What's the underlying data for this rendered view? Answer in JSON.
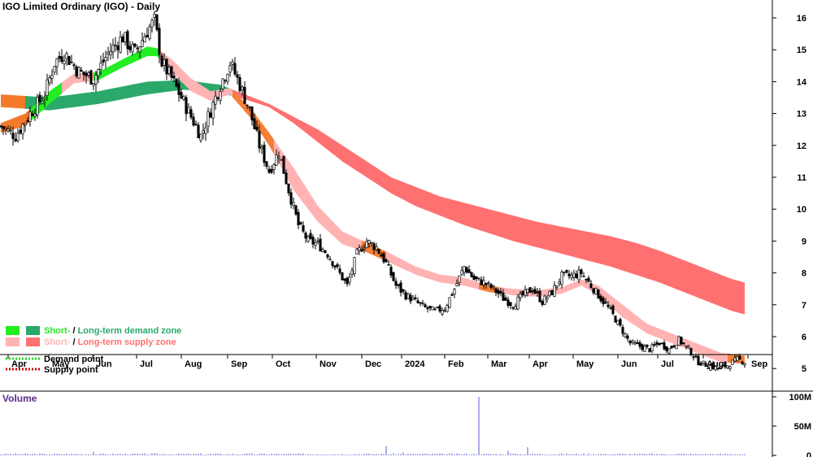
{
  "chart_data": {
    "type": "candlestick",
    "title": "IGO Limited Ordinary (IGO) - Daily",
    "ylim": [
      4.6,
      16.4
    ],
    "y_ticks": [
      "5",
      "6",
      "7",
      "8",
      "9",
      "10",
      "11",
      "12",
      "13",
      "14",
      "15",
      "16"
    ],
    "x_ticks": [
      "Apr",
      "May",
      "Jun",
      "Jul",
      "Aug",
      "Sep",
      "Oct",
      "Nov",
      "Dec",
      "2024",
      "Feb",
      "Mar",
      "Apr",
      "May",
      "Jun",
      "Jul",
      "Aug",
      "Sep"
    ],
    "grid": false,
    "legend_position": "bottom-left",
    "legend": [
      {
        "label_a": "Short-",
        "sep": " / ",
        "label_b": "Long-term demand zone",
        "color_a": "#22ee22",
        "color_b": "#2aa96a"
      },
      {
        "label_a": "Short-",
        "sep": " / ",
        "label_b": "Long-term supply zone",
        "color_a": "#ffb3b3",
        "color_b": "#ff7070"
      },
      {
        "label": "Demand point",
        "color": "#22dd22"
      },
      {
        "label": "Supply point",
        "color": "#cc0000"
      }
    ],
    "close_series": [
      [
        0,
        12.6
      ],
      [
        6,
        12.3
      ],
      [
        12,
        13.0
      ],
      [
        18,
        13.6
      ],
      [
        22,
        14.6
      ],
      [
        26,
        14.9
      ],
      [
        32,
        14.3
      ],
      [
        38,
        14.1
      ],
      [
        44,
        14.9
      ],
      [
        50,
        15.4
      ],
      [
        55,
        14.9
      ],
      [
        60,
        15.6
      ],
      [
        63,
        15.9
      ],
      [
        66,
        14.6
      ],
      [
        70,
        14.1
      ],
      [
        74,
        13.5
      ],
      [
        78,
        12.9
      ],
      [
        82,
        12.3
      ],
      [
        86,
        13.1
      ],
      [
        90,
        13.9
      ],
      [
        94,
        14.6
      ],
      [
        98,
        13.9
      ],
      [
        102,
        13.1
      ],
      [
        106,
        12.0
      ],
      [
        110,
        11.2
      ],
      [
        114,
        11.8
      ],
      [
        118,
        10.6
      ],
      [
        122,
        9.5
      ],
      [
        126,
        9.0
      ],
      [
        130,
        8.9
      ],
      [
        134,
        8.6
      ],
      [
        138,
        8.1
      ],
      [
        142,
        7.6
      ],
      [
        146,
        8.6
      ],
      [
        150,
        9.0
      ],
      [
        154,
        8.8
      ],
      [
        158,
        8.3
      ],
      [
        162,
        7.6
      ],
      [
        166,
        7.3
      ],
      [
        170,
        7.1
      ],
      [
        174,
        6.9
      ],
      [
        178,
        6.8
      ],
      [
        182,
        6.9
      ],
      [
        186,
        7.5
      ],
      [
        190,
        8.2
      ],
      [
        194,
        7.8
      ],
      [
        198,
        7.7
      ],
      [
        202,
        7.5
      ],
      [
        206,
        7.2
      ],
      [
        210,
        7.0
      ],
      [
        214,
        7.3
      ],
      [
        218,
        7.5
      ],
      [
        222,
        7.1
      ],
      [
        226,
        7.4
      ],
      [
        230,
        7.9
      ],
      [
        234,
        7.9
      ],
      [
        238,
        8.0
      ],
      [
        242,
        7.6
      ],
      [
        246,
        7.2
      ],
      [
        250,
        6.8
      ],
      [
        254,
        6.3
      ],
      [
        258,
        5.8
      ],
      [
        262,
        5.7
      ],
      [
        266,
        5.6
      ],
      [
        270,
        5.8
      ],
      [
        274,
        5.6
      ],
      [
        278,
        5.9
      ],
      [
        282,
        5.6
      ],
      [
        286,
        5.2
      ],
      [
        290,
        5.1
      ],
      [
        294,
        5.0
      ],
      [
        298,
        5.1
      ],
      [
        302,
        5.3
      ],
      [
        305,
        5.2
      ]
    ],
    "long_term_zone": {
      "upper": [
        [
          0,
          13.6
        ],
        [
          20,
          13.5
        ],
        [
          40,
          13.7
        ],
        [
          60,
          14.0
        ],
        [
          75,
          14.05
        ],
        [
          90,
          13.9
        ],
        [
          100,
          13.6
        ],
        [
          110,
          13.3
        ],
        [
          120,
          12.9
        ],
        [
          130,
          12.5
        ],
        [
          140,
          12.0
        ],
        [
          150,
          11.5
        ],
        [
          160,
          11.0
        ],
        [
          170,
          10.7
        ],
        [
          180,
          10.4
        ],
        [
          190,
          10.2
        ],
        [
          200,
          10.0
        ],
        [
          210,
          9.8
        ],
        [
          220,
          9.6
        ],
        [
          230,
          9.45
        ],
        [
          240,
          9.3
        ],
        [
          250,
          9.15
        ],
        [
          260,
          8.95
        ],
        [
          270,
          8.7
        ],
        [
          280,
          8.4
        ],
        [
          290,
          8.1
        ],
        [
          300,
          7.8
        ],
        [
          305,
          7.7
        ]
      ],
      "lower": [
        [
          0,
          13.2
        ],
        [
          20,
          13.1
        ],
        [
          40,
          13.3
        ],
        [
          60,
          13.6
        ],
        [
          75,
          13.75
        ],
        [
          90,
          13.65
        ],
        [
          100,
          13.45
        ],
        [
          110,
          13.2
        ],
        [
          120,
          12.7
        ],
        [
          130,
          12.1
        ],
        [
          140,
          11.5
        ],
        [
          150,
          11.0
        ],
        [
          160,
          10.5
        ],
        [
          170,
          10.1
        ],
        [
          180,
          9.8
        ],
        [
          190,
          9.5
        ],
        [
          200,
          9.25
        ],
        [
          210,
          9.0
        ],
        [
          220,
          8.8
        ],
        [
          230,
          8.6
        ],
        [
          240,
          8.4
        ],
        [
          250,
          8.2
        ],
        [
          260,
          7.95
        ],
        [
          270,
          7.7
        ],
        [
          280,
          7.4
        ],
        [
          290,
          7.1
        ],
        [
          300,
          6.8
        ],
        [
          305,
          6.7
        ]
      ],
      "segments": [
        {
          "from": 0,
          "to": 10,
          "state": "supply"
        },
        {
          "from": 10,
          "to": 95,
          "state": "demand"
        },
        {
          "from": 95,
          "to": 305,
          "state": "supply"
        }
      ]
    },
    "short_term_zone": {
      "upper": [
        [
          0,
          12.7
        ],
        [
          10,
          13.0
        ],
        [
          20,
          13.7
        ],
        [
          30,
          14.25
        ],
        [
          40,
          14.3
        ],
        [
          50,
          14.7
        ],
        [
          60,
          15.1
        ],
        [
          64,
          15.05
        ],
        [
          70,
          14.7
        ],
        [
          78,
          14.1
        ],
        [
          86,
          13.7
        ],
        [
          94,
          13.8
        ],
        [
          102,
          13.2
        ],
        [
          110,
          12.4
        ],
        [
          120,
          11.3
        ],
        [
          130,
          10.1
        ],
        [
          140,
          9.3
        ],
        [
          150,
          8.95
        ],
        [
          160,
          8.6
        ],
        [
          170,
          8.2
        ],
        [
          180,
          7.95
        ],
        [
          190,
          7.85
        ],
        [
          200,
          7.6
        ],
        [
          210,
          7.5
        ],
        [
          220,
          7.45
        ],
        [
          230,
          7.55
        ],
        [
          238,
          7.8
        ],
        [
          245,
          7.6
        ],
        [
          255,
          7.0
        ],
        [
          265,
          6.4
        ],
        [
          275,
          6.1
        ],
        [
          285,
          5.8
        ],
        [
          295,
          5.5
        ],
        [
          305,
          5.4
        ]
      ],
      "lower": [
        [
          0,
          12.4
        ],
        [
          10,
          12.6
        ],
        [
          20,
          13.3
        ],
        [
          30,
          13.95
        ],
        [
          40,
          14.05
        ],
        [
          50,
          14.45
        ],
        [
          60,
          14.8
        ],
        [
          64,
          14.8
        ],
        [
          70,
          14.3
        ],
        [
          78,
          13.7
        ],
        [
          86,
          13.4
        ],
        [
          94,
          13.6
        ],
        [
          102,
          12.9
        ],
        [
          110,
          12.0
        ],
        [
          120,
          10.6
        ],
        [
          130,
          9.6
        ],
        [
          140,
          8.9
        ],
        [
          150,
          8.65
        ],
        [
          160,
          8.3
        ],
        [
          170,
          7.95
        ],
        [
          180,
          7.7
        ],
        [
          190,
          7.6
        ],
        [
          200,
          7.4
        ],
        [
          210,
          7.3
        ],
        [
          220,
          7.25
        ],
        [
          230,
          7.35
        ],
        [
          238,
          7.6
        ],
        [
          245,
          7.3
        ],
        [
          255,
          6.6
        ],
        [
          265,
          6.1
        ],
        [
          275,
          5.8
        ],
        [
          285,
          5.5
        ],
        [
          295,
          5.2
        ],
        [
          305,
          5.15
        ]
      ],
      "segments": [
        {
          "from": 0,
          "to": 12,
          "state": "supply"
        },
        {
          "from": 12,
          "to": 25,
          "state": "demand"
        },
        {
          "from": 25,
          "to": 38,
          "state": "supply"
        },
        {
          "from": 38,
          "to": 65,
          "state": "demand"
        },
        {
          "from": 65,
          "to": 305,
          "state": "supply"
        }
      ]
    },
    "volume": {
      "label": "Volume",
      "y_ticks": [
        "0",
        "50M",
        "100M"
      ],
      "ylim": [
        0,
        100
      ],
      "unit": "M",
      "baseline": 1.2,
      "spikes": [
        [
          38,
          6
        ],
        [
          100,
          3
        ],
        [
          158,
          16
        ],
        [
          165,
          5
        ],
        [
          196,
          100
        ],
        [
          208,
          8
        ],
        [
          216,
          14
        ],
        [
          306,
          5
        ]
      ]
    }
  }
}
